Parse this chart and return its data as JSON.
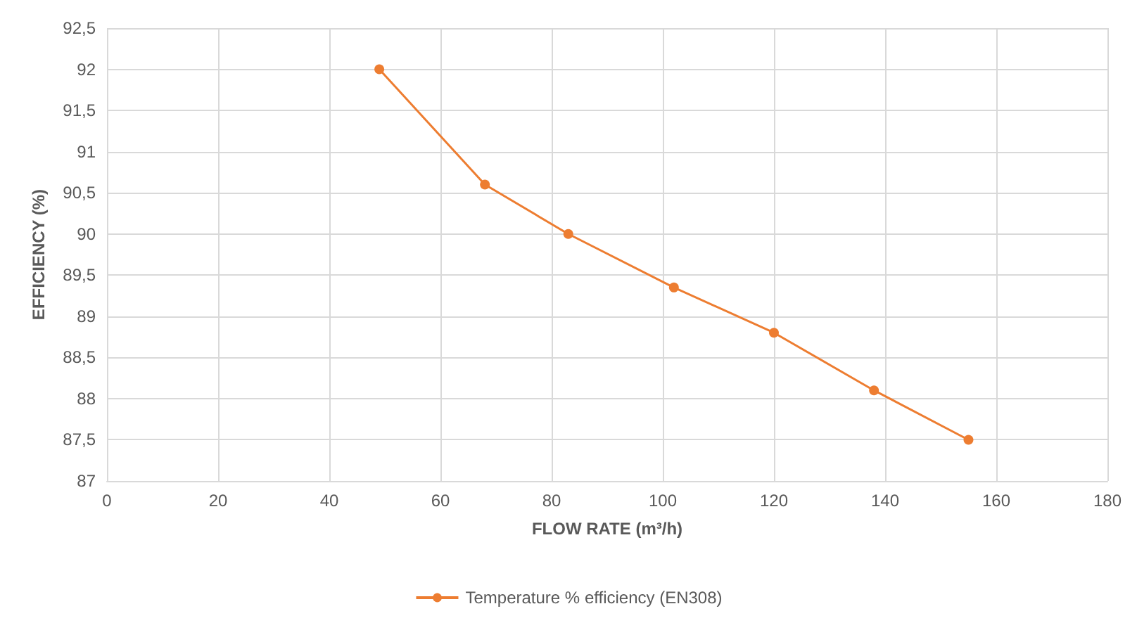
{
  "chart_data": {
    "type": "line",
    "xlabel": "FLOW RATE (m³/h)",
    "ylabel": "EFFICIENCY (%)",
    "x": [
      49,
      68,
      83,
      102,
      120,
      138,
      155
    ],
    "series": [
      {
        "name": "Temperature % efficiency (EN308)",
        "color": "#ed7d31",
        "values": [
          92,
          90.6,
          90,
          89.35,
          88.8,
          88.1,
          87.5
        ]
      }
    ],
    "xlim": [
      0,
      180
    ],
    "xticks": [
      0,
      20,
      40,
      60,
      80,
      100,
      120,
      140,
      160,
      180
    ],
    "ylim": [
      87,
      92.5
    ],
    "yticks": [
      87,
      {
        "value": 87.5,
        "label": "87,5"
      },
      88,
      {
        "value": 88.5,
        "label": "88,5"
      },
      89,
      {
        "value": 89.5,
        "label": "89,5"
      },
      90,
      {
        "value": 90.5,
        "label": "90,5"
      },
      91,
      {
        "value": 91.5,
        "label": "91,5"
      },
      92,
      {
        "value": 92.5,
        "label": "92,5"
      }
    ],
    "grid": true,
    "legend": "bottom",
    "marker": "circle",
    "line_style": "solid"
  }
}
